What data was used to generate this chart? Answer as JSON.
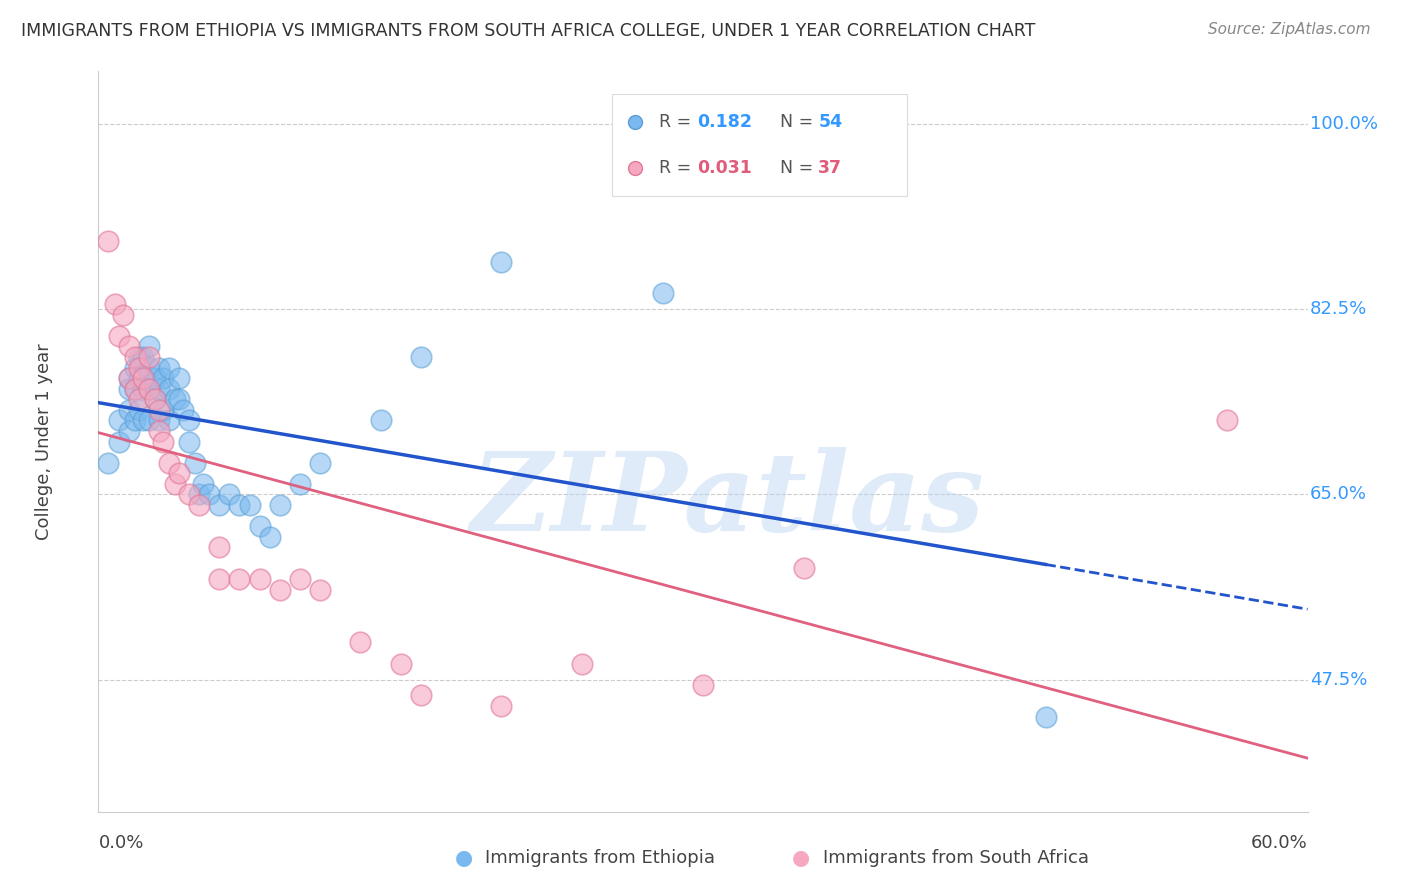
{
  "title": "IMMIGRANTS FROM ETHIOPIA VS IMMIGRANTS FROM SOUTH AFRICA COLLEGE, UNDER 1 YEAR CORRELATION CHART",
  "source": "Source: ZipAtlas.com",
  "ylabel": "College, Under 1 year",
  "ylabel_ticks": [
    "47.5%",
    "65.0%",
    "82.5%",
    "100.0%"
  ],
  "xmin": 0.0,
  "xmax": 0.6,
  "ymin": 0.35,
  "ymax": 1.05,
  "watermark": "ZIPatlas",
  "R_ethiopia": 0.182,
  "N_ethiopia": 54,
  "R_sa": 0.031,
  "N_sa": 37,
  "blue_color": "#7ab8f0",
  "pink_color": "#f5a8c0",
  "blue_edge": "#5a9fd4",
  "pink_edge": "#e07898",
  "blue_line_color": "#2255cc",
  "pink_line_color": "#e06080",
  "ethiopia_x": [
    0.005,
    0.01,
    0.01,
    0.015,
    0.015,
    0.015,
    0.015,
    0.018,
    0.018,
    0.018,
    0.02,
    0.02,
    0.02,
    0.022,
    0.022,
    0.022,
    0.025,
    0.025,
    0.025,
    0.025,
    0.028,
    0.028,
    0.03,
    0.03,
    0.03,
    0.032,
    0.032,
    0.035,
    0.035,
    0.035,
    0.038,
    0.04,
    0.04,
    0.042,
    0.045,
    0.045,
    0.048,
    0.05,
    0.052,
    0.055,
    0.06,
    0.065,
    0.07,
    0.075,
    0.08,
    0.085,
    0.09,
    0.1,
    0.11,
    0.14,
    0.16,
    0.2,
    0.28,
    0.47
  ],
  "ethiopia_y": [
    0.68,
    0.72,
    0.7,
    0.76,
    0.75,
    0.73,
    0.71,
    0.77,
    0.75,
    0.72,
    0.78,
    0.76,
    0.73,
    0.78,
    0.75,
    0.72,
    0.79,
    0.77,
    0.75,
    0.72,
    0.76,
    0.74,
    0.77,
    0.75,
    0.72,
    0.76,
    0.73,
    0.77,
    0.75,
    0.72,
    0.74,
    0.76,
    0.74,
    0.73,
    0.72,
    0.7,
    0.68,
    0.65,
    0.66,
    0.65,
    0.64,
    0.65,
    0.64,
    0.64,
    0.62,
    0.61,
    0.64,
    0.66,
    0.68,
    0.72,
    0.78,
    0.87,
    0.84,
    0.44
  ],
  "sa_x": [
    0.005,
    0.008,
    0.01,
    0.012,
    0.015,
    0.015,
    0.018,
    0.018,
    0.02,
    0.02,
    0.022,
    0.025,
    0.025,
    0.028,
    0.03,
    0.03,
    0.032,
    0.035,
    0.038,
    0.04,
    0.045,
    0.05,
    0.06,
    0.06,
    0.07,
    0.08,
    0.09,
    0.1,
    0.11,
    0.13,
    0.15,
    0.16,
    0.2,
    0.24,
    0.3,
    0.35,
    0.56
  ],
  "sa_y": [
    0.89,
    0.83,
    0.8,
    0.82,
    0.79,
    0.76,
    0.78,
    0.75,
    0.77,
    0.74,
    0.76,
    0.78,
    0.75,
    0.74,
    0.73,
    0.71,
    0.7,
    0.68,
    0.66,
    0.67,
    0.65,
    0.64,
    0.6,
    0.57,
    0.57,
    0.57,
    0.56,
    0.57,
    0.56,
    0.51,
    0.49,
    0.46,
    0.45,
    0.49,
    0.47,
    0.58,
    0.72
  ]
}
